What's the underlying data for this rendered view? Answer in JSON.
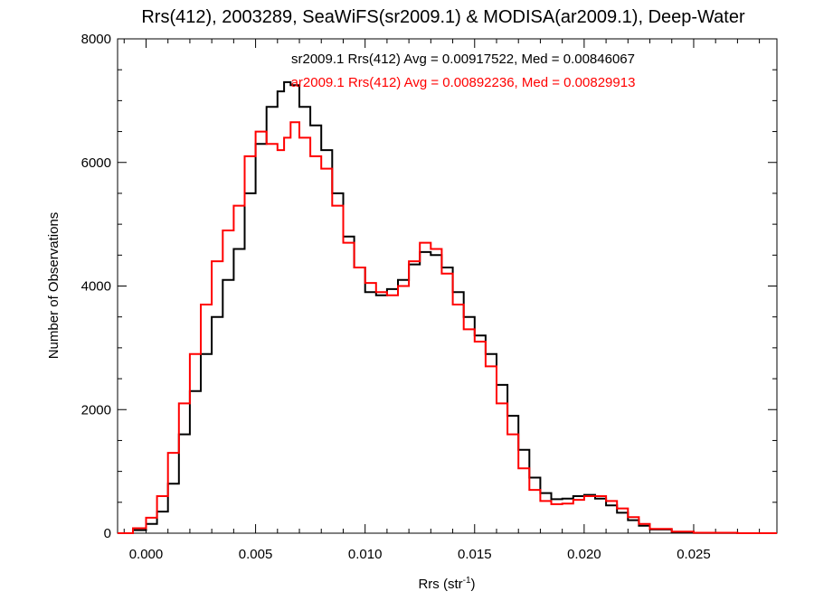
{
  "chart_data": {
    "type": "line",
    "title": "Rrs(412), 2003289, SeaWiFS(sr2009.1) & MODISA(ar2009.1), Deep-Water",
    "xlabel": "Rrs (str",
    "xlabel_sup": "-1",
    "xlabel_close": ")",
    "ylabel": "Number of Observations",
    "xlim": [
      -0.0013,
      0.0288
    ],
    "ylim": [
      0,
      8000
    ],
    "xticks": [
      0.0,
      0.005,
      0.01,
      0.015,
      0.02,
      0.025
    ],
    "xtick_labels": [
      "0.000",
      "0.005",
      "0.010",
      "0.015",
      "0.020",
      "0.025"
    ],
    "yticks": [
      0,
      2000,
      4000,
      6000,
      8000
    ],
    "ytick_labels": [
      "0",
      "2000",
      "4000",
      "6000",
      "8000"
    ],
    "step": true,
    "grid": false,
    "annotations": [
      {
        "text": "sr2009.1 Rrs(412) Avg = 0.00917522, Med = 0.00846067",
        "color": "#000000"
      },
      {
        "text": "ar2009.1 Rrs(412) Avg = 0.00892236, Med = 0.00829913",
        "color": "#ff0000"
      }
    ],
    "series": [
      {
        "color": "#000000",
        "x": [
          -0.0013,
          -0.0006,
          0.0,
          0.0005,
          0.001,
          0.0015,
          0.002,
          0.0025,
          0.003,
          0.0035,
          0.004,
          0.0045,
          0.005,
          0.0055,
          0.006,
          0.0063,
          0.0066,
          0.007,
          0.0075,
          0.008,
          0.0085,
          0.009,
          0.0095,
          0.01,
          0.0105,
          0.011,
          0.0115,
          0.012,
          0.0125,
          0.013,
          0.0135,
          0.014,
          0.0145,
          0.015,
          0.0155,
          0.016,
          0.0165,
          0.017,
          0.0175,
          0.018,
          0.0185,
          0.019,
          0.0195,
          0.02,
          0.0205,
          0.021,
          0.0215,
          0.022,
          0.0225,
          0.023,
          0.024,
          0.025,
          0.027,
          0.0288
        ],
        "values": [
          0,
          50,
          150,
          350,
          800,
          1600,
          2300,
          2900,
          3500,
          4100,
          4600,
          5500,
          6300,
          6900,
          7150,
          7300,
          7250,
          6900,
          6600,
          6200,
          5500,
          4800,
          4300,
          3900,
          3850,
          3950,
          4100,
          4350,
          4550,
          4500,
          4300,
          3900,
          3500,
          3200,
          2900,
          2400,
          1900,
          1350,
          900,
          650,
          550,
          560,
          600,
          620,
          560,
          450,
          330,
          210,
          120,
          60,
          20,
          5,
          0,
          0
        ]
      },
      {
        "color": "#ff0000",
        "x": [
          -0.0013,
          -0.0006,
          0.0,
          0.0005,
          0.001,
          0.0015,
          0.002,
          0.0025,
          0.003,
          0.0035,
          0.004,
          0.0045,
          0.005,
          0.0055,
          0.006,
          0.0063,
          0.0066,
          0.007,
          0.0075,
          0.008,
          0.0085,
          0.009,
          0.0095,
          0.01,
          0.0105,
          0.011,
          0.0115,
          0.012,
          0.0125,
          0.013,
          0.0135,
          0.014,
          0.0145,
          0.015,
          0.0155,
          0.016,
          0.0165,
          0.017,
          0.0175,
          0.018,
          0.0185,
          0.019,
          0.0195,
          0.02,
          0.0205,
          0.021,
          0.0215,
          0.022,
          0.0225,
          0.023,
          0.024,
          0.025,
          0.027,
          0.0288
        ],
        "values": [
          0,
          80,
          250,
          600,
          1300,
          2100,
          2900,
          3700,
          4400,
          4900,
          5300,
          6100,
          6500,
          6300,
          6200,
          6400,
          6650,
          6400,
          6100,
          5900,
          5300,
          4700,
          4300,
          4050,
          3900,
          3850,
          4000,
          4400,
          4700,
          4600,
          4200,
          3700,
          3300,
          3100,
          2700,
          2100,
          1600,
          1050,
          700,
          520,
          470,
          480,
          540,
          600,
          600,
          520,
          400,
          260,
          150,
          70,
          25,
          8,
          0,
          0
        ]
      }
    ]
  }
}
